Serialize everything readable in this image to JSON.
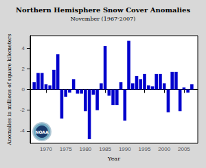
{
  "chart_data": {
    "type": "bar",
    "title": "Northern Hemisphere Snow Cover Anomalies",
    "subtitle": "November (1967-2007)",
    "xlabel": "Year",
    "ylabel": "Anomalies in millions of square kilometers",
    "x": [
      1967,
      1968,
      1969,
      1970,
      1971,
      1972,
      1973,
      1974,
      1975,
      1976,
      1977,
      1978,
      1979,
      1980,
      1981,
      1982,
      1983,
      1984,
      1985,
      1986,
      1987,
      1988,
      1989,
      1990,
      1991,
      1992,
      1993,
      1994,
      1995,
      1996,
      1997,
      1998,
      1999,
      2000,
      2001,
      2002,
      2003,
      2004,
      2005,
      2006,
      2007
    ],
    "values": [
      0.7,
      1.6,
      1.6,
      0.5,
      0.4,
      1.9,
      3.4,
      -2.8,
      -0.7,
      -0.3,
      1.0,
      -0.4,
      -0.4,
      -2.1,
      -4.8,
      -0.5,
      -2.0,
      0.6,
      4.2,
      -0.6,
      -1.5,
      -1.5,
      0.7,
      -3.0,
      4.7,
      0.6,
      1.3,
      1.0,
      1.5,
      0.4,
      0.3,
      1.5,
      1.5,
      0.6,
      -2.2,
      1.7,
      1.7,
      -2.1,
      0.2,
      -0.3,
      0.5
    ],
    "color": "#0000cc",
    "xlim": [
      1966.0,
      2008.5
    ],
    "xticks": [
      1970,
      1975,
      1980,
      1985,
      1990,
      1995,
      2000,
      2005
    ],
    "ylim": [
      -5.2,
      5.2
    ],
    "yticks": [
      -4.0,
      -2.0,
      0.0,
      2.0,
      4.0
    ],
    "grid": false,
    "annotations": [
      "NOAA"
    ]
  }
}
